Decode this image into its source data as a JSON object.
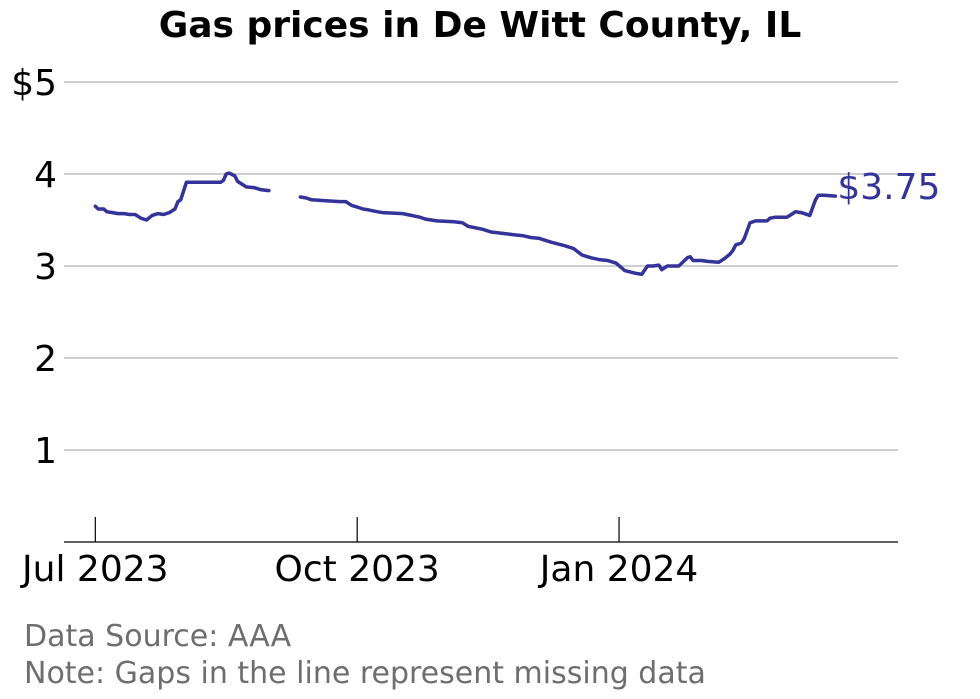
{
  "chart_data": {
    "type": "line",
    "title": "Gas prices in De Witt County, IL",
    "xlabel": "",
    "ylabel": "",
    "ylim": [
      0,
      5
    ],
    "xlim": [
      "2023-06-20",
      "2024-04-08"
    ],
    "yticks": [
      {
        "value": 5,
        "label": "$5"
      },
      {
        "value": 4,
        "label": "4"
      },
      {
        "value": 3,
        "label": "3"
      },
      {
        "value": 2,
        "label": "2"
      },
      {
        "value": 1,
        "label": "1"
      }
    ],
    "xticks": [
      {
        "value": "2023-07-01",
        "label": "Jul 2023"
      },
      {
        "value": "2023-10-01",
        "label": "Oct 2023"
      },
      {
        "value": "2024-01-01",
        "label": "Jan 2024"
      }
    ],
    "grid": true,
    "end_label": "$3.75",
    "color": "#333399",
    "series": [
      {
        "segments": [
          [
            [
              "2023-07-01",
              3.65
            ],
            [
              "2023-07-02",
              3.62
            ],
            [
              "2023-07-04",
              3.62
            ],
            [
              "2023-07-05",
              3.59
            ],
            [
              "2023-07-07",
              3.58
            ],
            [
              "2023-07-09",
              3.57
            ],
            [
              "2023-07-11",
              3.57
            ],
            [
              "2023-07-13",
              3.56
            ],
            [
              "2023-07-15",
              3.56
            ],
            [
              "2023-07-17",
              3.52
            ],
            [
              "2023-07-19",
              3.5
            ],
            [
              "2023-07-21",
              3.55
            ],
            [
              "2023-07-23",
              3.57
            ],
            [
              "2023-07-25",
              3.56
            ],
            [
              "2023-07-27",
              3.58
            ],
            [
              "2023-07-29",
              3.62
            ],
            [
              "2023-07-30",
              3.7
            ],
            [
              "2023-07-31",
              3.72
            ],
            [
              "2023-08-02",
              3.91
            ],
            [
              "2023-08-05",
              3.91
            ],
            [
              "2023-08-10",
              3.91
            ],
            [
              "2023-08-14",
              3.91
            ],
            [
              "2023-08-15",
              3.93
            ],
            [
              "2023-08-16",
              4.0
            ],
            [
              "2023-08-17",
              4.01
            ],
            [
              "2023-08-19",
              3.98
            ],
            [
              "2023-08-20",
              3.92
            ],
            [
              "2023-08-23",
              3.86
            ],
            [
              "2023-08-26",
              3.85
            ],
            [
              "2023-08-28",
              3.83
            ],
            [
              "2023-08-31",
              3.82
            ]
          ],
          [
            [
              "2023-09-11",
              3.75
            ],
            [
              "2023-09-13",
              3.74
            ],
            [
              "2023-09-15",
              3.72
            ],
            [
              "2023-09-20",
              3.71
            ],
            [
              "2023-09-25",
              3.7
            ],
            [
              "2023-09-27",
              3.7
            ],
            [
              "2023-09-29",
              3.66
            ],
            [
              "2023-10-02",
              3.63
            ],
            [
              "2023-10-03",
              3.62
            ],
            [
              "2023-10-05",
              3.61
            ],
            [
              "2023-10-08",
              3.59
            ],
            [
              "2023-10-10",
              3.58
            ],
            [
              "2023-10-17",
              3.57
            ],
            [
              "2023-10-20",
              3.55
            ],
            [
              "2023-10-23",
              3.53
            ],
            [
              "2023-10-25",
              3.51
            ],
            [
              "2023-10-29",
              3.49
            ],
            [
              "2023-11-04",
              3.48
            ],
            [
              "2023-11-07",
              3.47
            ],
            [
              "2023-11-09",
              3.43
            ],
            [
              "2023-11-14",
              3.4
            ],
            [
              "2023-11-17",
              3.37
            ],
            [
              "2023-11-25",
              3.34
            ],
            [
              "2023-11-28",
              3.33
            ],
            [
              "2023-12-01",
              3.31
            ],
            [
              "2023-12-04",
              3.3
            ],
            [
              "2023-12-08",
              3.26
            ],
            [
              "2023-12-13",
              3.22
            ],
            [
              "2023-12-16",
              3.19
            ],
            [
              "2023-12-19",
              3.12
            ],
            [
              "2023-12-22",
              3.09
            ],
            [
              "2023-12-25",
              3.07
            ],
            [
              "2023-12-28",
              3.06
            ],
            [
              "2023-12-31",
              3.03
            ],
            [
              "2024-01-03",
              2.95
            ],
            [
              "2024-01-07",
              2.92
            ],
            [
              "2024-01-09",
              2.91
            ],
            [
              "2024-01-11",
              3.0
            ],
            [
              "2024-01-13",
              3.0
            ],
            [
              "2024-01-15",
              3.01
            ],
            [
              "2024-01-16",
              2.96
            ],
            [
              "2024-01-18",
              3.0
            ],
            [
              "2024-01-22",
              3.0
            ],
            [
              "2024-01-25",
              3.09
            ],
            [
              "2024-01-26",
              3.1
            ],
            [
              "2024-01-27",
              3.06
            ],
            [
              "2024-01-30",
              3.06
            ],
            [
              "2024-02-01",
              3.05
            ],
            [
              "2024-02-05",
              3.04
            ],
            [
              "2024-02-07",
              3.08
            ],
            [
              "2024-02-09",
              3.13
            ],
            [
              "2024-02-10",
              3.17
            ],
            [
              "2024-02-11",
              3.23
            ],
            [
              "2024-02-13",
              3.25
            ],
            [
              "2024-02-14",
              3.3
            ],
            [
              "2024-02-16",
              3.47
            ],
            [
              "2024-02-18",
              3.49
            ],
            [
              "2024-02-22",
              3.49
            ],
            [
              "2024-02-23",
              3.52
            ],
            [
              "2024-02-25",
              3.53
            ],
            [
              "2024-02-29",
              3.53
            ],
            [
              "2024-03-02",
              3.57
            ],
            [
              "2024-03-03",
              3.59
            ],
            [
              "2024-03-05",
              3.58
            ],
            [
              "2024-03-08",
              3.55
            ],
            [
              "2024-03-10",
              3.72
            ],
            [
              "2024-03-11",
              3.77
            ],
            [
              "2024-03-13",
              3.77
            ],
            [
              "2024-03-17",
              3.76
            ]
          ]
        ]
      }
    ]
  },
  "notes": {
    "source": "Data Source: AAA",
    "gaps": "Note: Gaps in the line represent missing data"
  }
}
